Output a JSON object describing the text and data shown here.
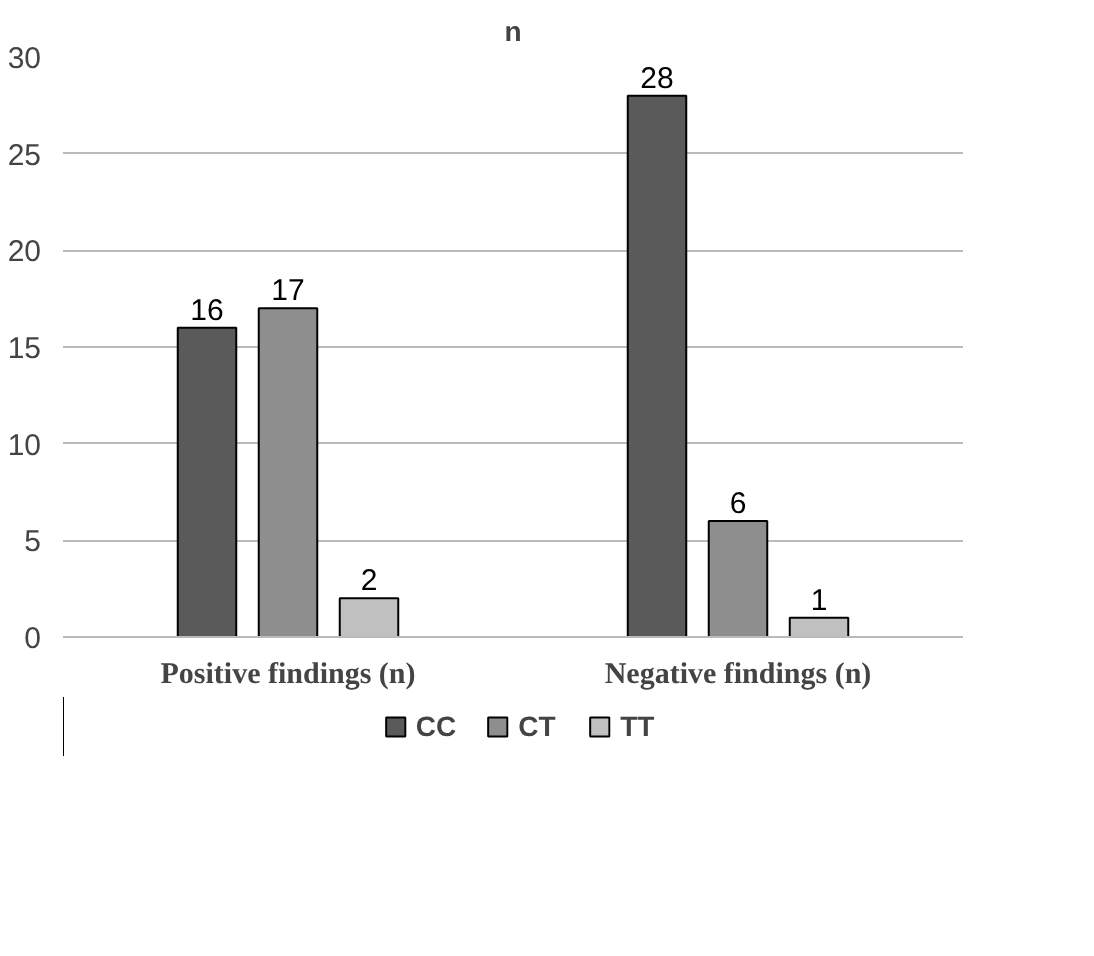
{
  "chart_data": {
    "type": "bar",
    "title": "n",
    "categories": [
      "Positive findings (n)",
      "Negative findings (n)"
    ],
    "series": [
      {
        "name": "CC",
        "color": "#5a5a5a",
        "values": [
          16,
          28
        ]
      },
      {
        "name": "CT",
        "color": "#8e8e8e",
        "values": [
          17,
          6
        ]
      },
      {
        "name": "TT",
        "color": "#c0c0c0",
        "values": [
          2,
          1
        ]
      }
    ],
    "ylim": [
      0,
      30
    ],
    "yticks": [
      0,
      5,
      10,
      15,
      20,
      25,
      30
    ],
    "grid": "y",
    "legend": "bottom",
    "data_labels": true
  }
}
